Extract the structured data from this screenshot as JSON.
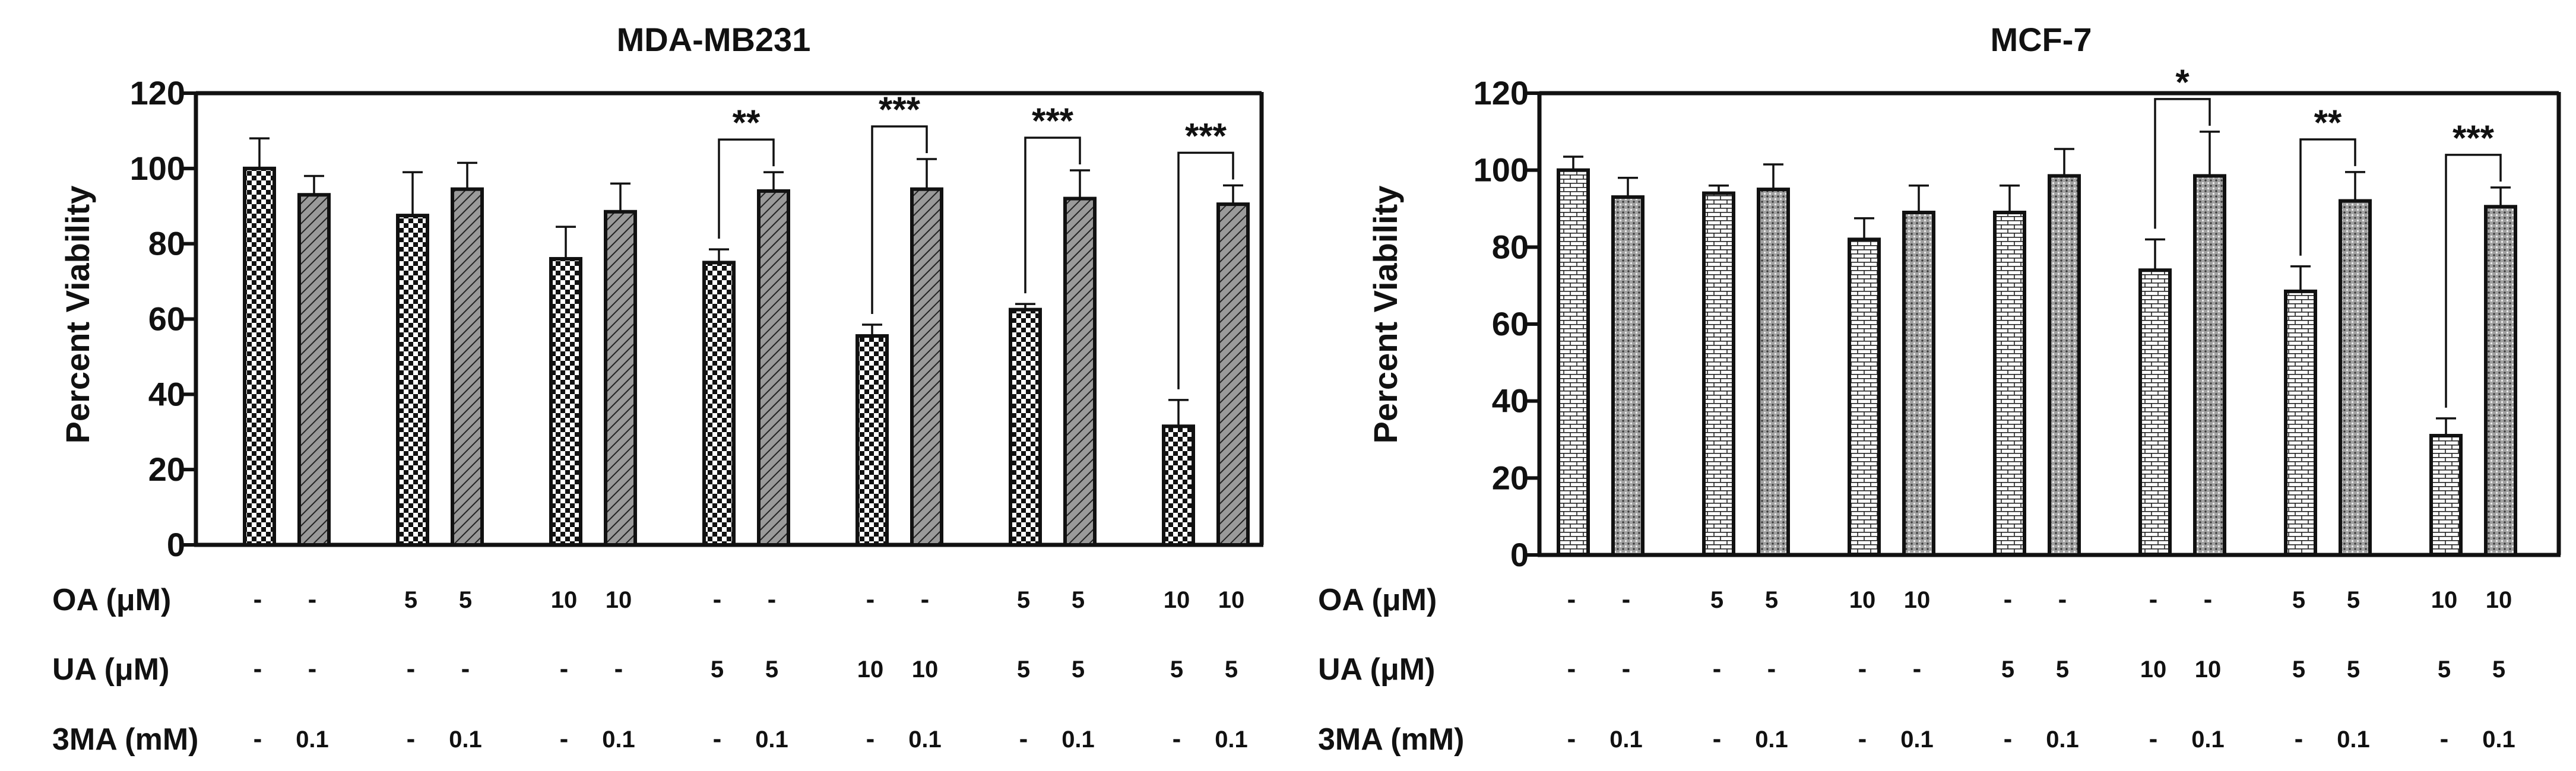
{
  "chart_data": [
    {
      "type": "bar",
      "title": "MDA-MB231",
      "ylabel": "Percent Viability",
      "xlabel": "",
      "ylim": [
        0,
        120
      ],
      "yticks": [
        0,
        20,
        40,
        60,
        80,
        100,
        120
      ],
      "pattern": "checker",
      "values": [
        100,
        93,
        87.5,
        94.5,
        76,
        88.5,
        75,
        94,
        55.5,
        94.5,
        62.5,
        92,
        31.5,
        90.5
      ],
      "errors": [
        8,
        5,
        11.5,
        7,
        8.5,
        7.5,
        3.5,
        5,
        3,
        8,
        1.5,
        7.5,
        7,
        5
      ],
      "significance": [
        {
          "pair": [
            6,
            7
          ],
          "label": "**"
        },
        {
          "pair": [
            8,
            9
          ],
          "label": "***"
        },
        {
          "pair": [
            10,
            11
          ],
          "label": "***"
        },
        {
          "pair": [
            12,
            13
          ],
          "label": "***"
        }
      ],
      "treatment_rows": [
        {
          "label": "OA (μM)",
          "values": [
            "-",
            "-",
            "5",
            "5",
            "10",
            "10",
            "-",
            "-",
            "-",
            "-",
            "5",
            "5",
            "10",
            "10"
          ]
        },
        {
          "label": "UA (μM)",
          "values": [
            "-",
            "-",
            "-",
            "-",
            "-",
            "-",
            "5",
            "5",
            "10",
            "10",
            "5",
            "5",
            "5",
            "5"
          ]
        },
        {
          "label": "3MA (mM)",
          "values": [
            "-",
            "0.1",
            "-",
            "0.1",
            "-",
            "0.1",
            "-",
            "0.1",
            "-",
            "0.1",
            "-",
            "0.1",
            "-",
            "0.1"
          ]
        }
      ]
    },
    {
      "type": "bar",
      "title": "MCF-7",
      "ylabel": "Percent Viability",
      "xlabel": "",
      "ylim": [
        0,
        120
      ],
      "yticks": [
        0,
        20,
        40,
        60,
        80,
        100,
        120
      ],
      "pattern": "brick",
      "values": [
        100,
        93,
        94,
        95,
        82,
        89,
        89,
        98.5,
        74,
        98.5,
        68.5,
        92,
        31,
        90.5
      ],
      "errors": [
        3.5,
        5,
        2,
        6.5,
        5.5,
        7,
        7,
        7,
        8,
        11.5,
        6.5,
        7.5,
        4.5,
        5
      ],
      "significance": [
        {
          "pair": [
            8,
            9
          ],
          "label": "*"
        },
        {
          "pair": [
            10,
            11
          ],
          "label": "**"
        },
        {
          "pair": [
            12,
            13
          ],
          "label": "***"
        }
      ],
      "treatment_rows": [
        {
          "label": "OA (μM)",
          "values": [
            "-",
            "-",
            "5",
            "5",
            "10",
            "10",
            "-",
            "-",
            "-",
            "-",
            "5",
            "5",
            "10",
            "10"
          ]
        },
        {
          "label": "UA (μM)",
          "values": [
            "-",
            "-",
            "-",
            "-",
            "-",
            "-",
            "5",
            "5",
            "10",
            "10",
            "5",
            "5",
            "5",
            "5"
          ]
        },
        {
          "label": "3MA (mM)",
          "values": [
            "-",
            "0.1",
            "-",
            "0.1",
            "-",
            "0.1",
            "-",
            "0.1",
            "-",
            "0.1",
            "-",
            "0.1",
            "-",
            "0.1"
          ]
        }
      ]
    }
  ],
  "colors": {
    "ink": "#111111",
    "hatch_bg": "#9a9a9a",
    "white": "#ffffff"
  }
}
